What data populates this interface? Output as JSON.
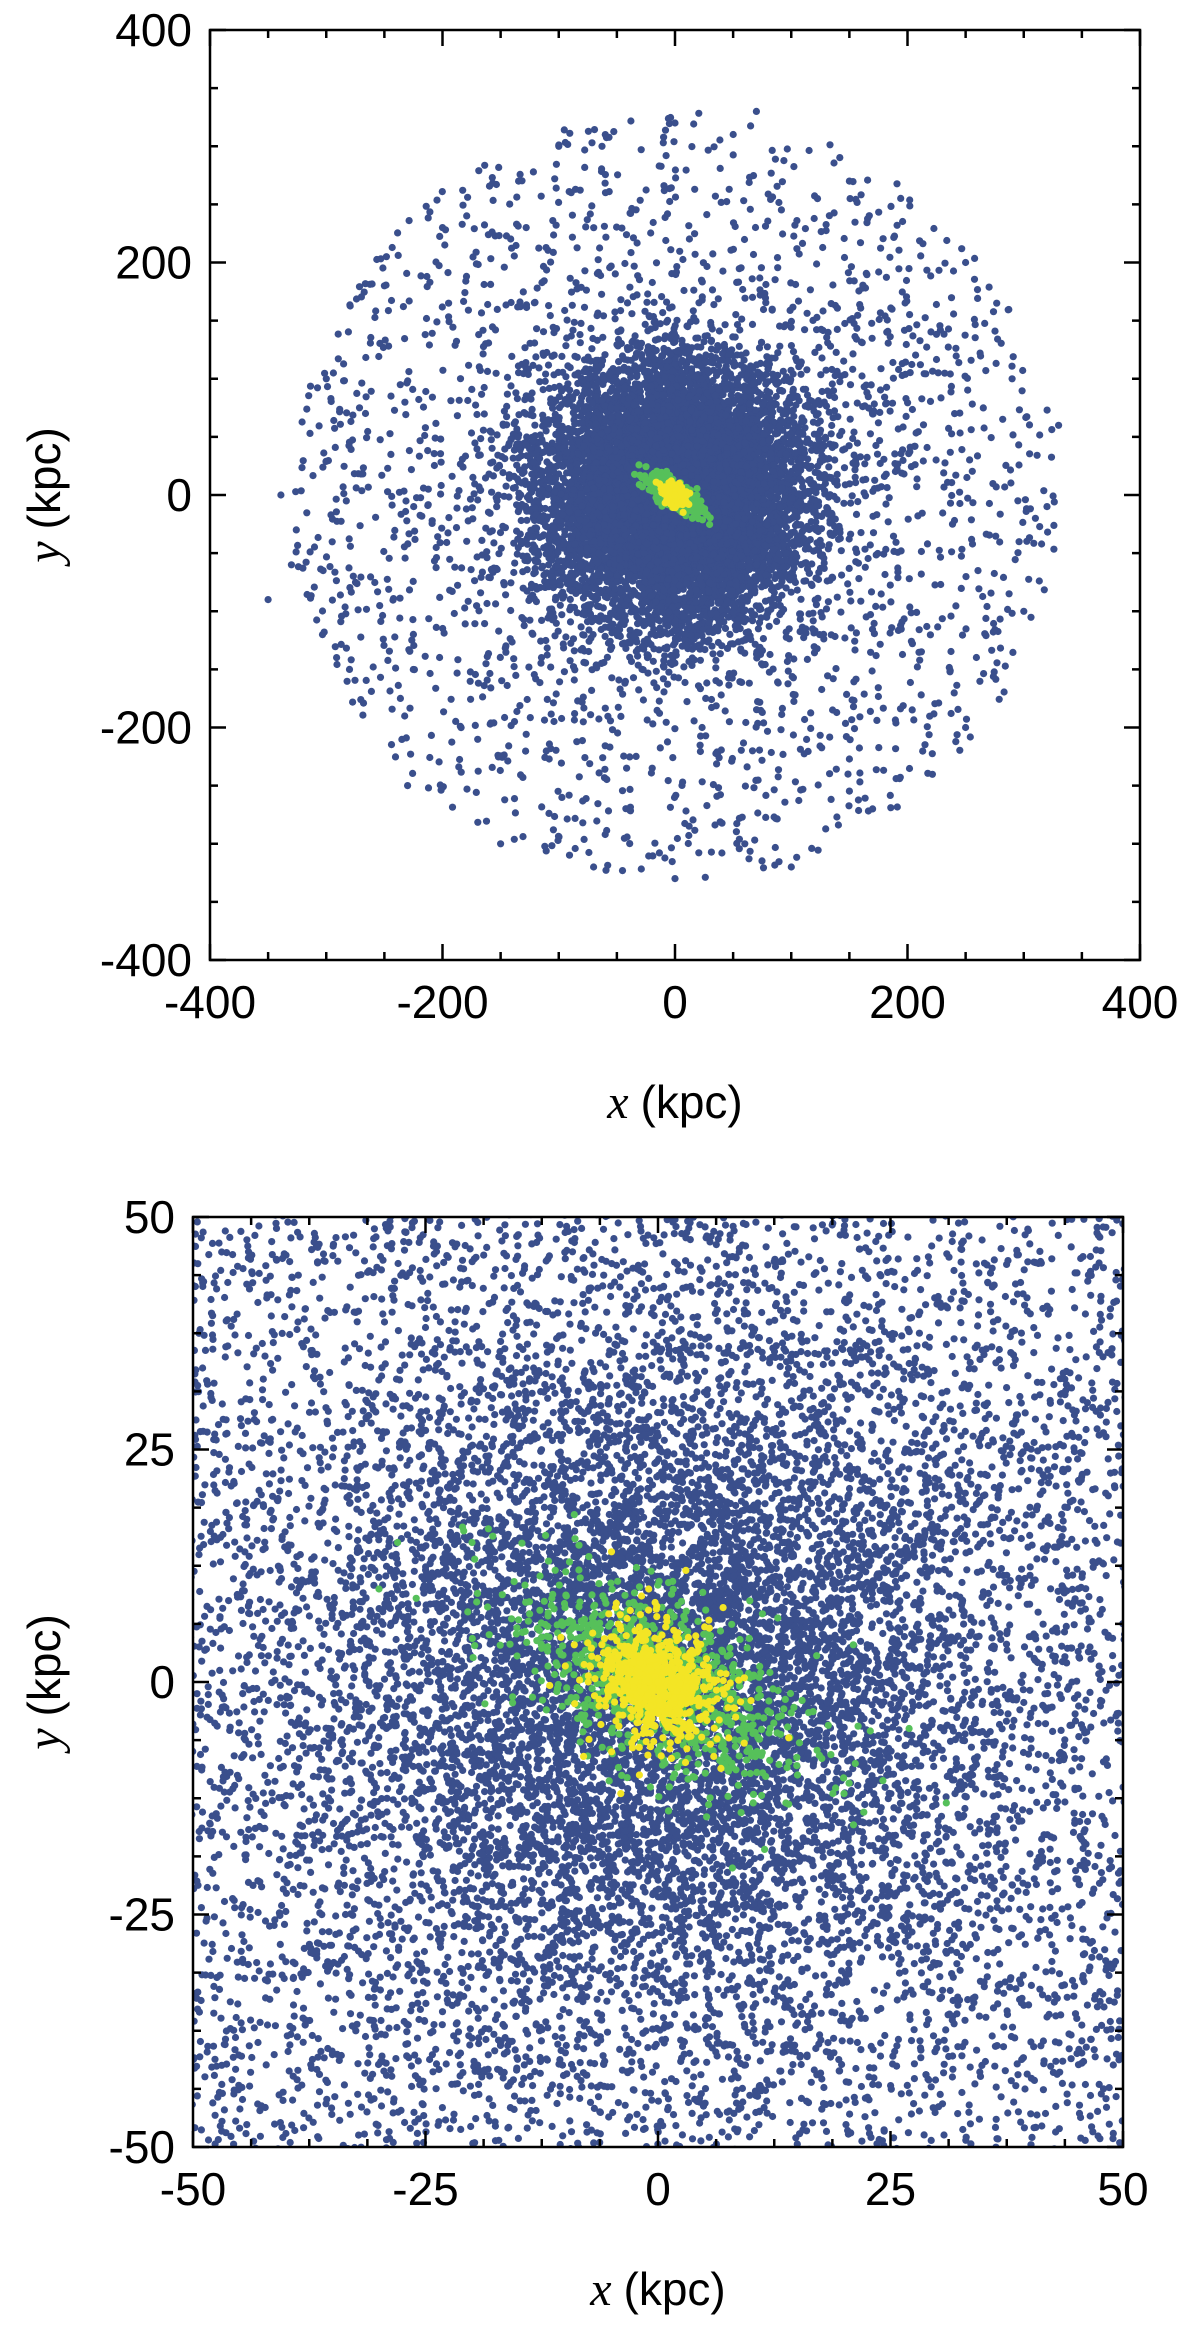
{
  "chart_data": [
    {
      "type": "scatter",
      "panel": "top",
      "title": "",
      "xlabel": {
        "var": "x",
        "unit": "(kpc)"
      },
      "ylabel": {
        "var": "y",
        "unit": "(kpc)"
      },
      "xlim": [
        -400,
        400
      ],
      "ylim": [
        -400,
        400
      ],
      "xticks": [
        -400,
        -200,
        0,
        200,
        400
      ],
      "yticks": [
        -400,
        -200,
        0,
        200,
        400
      ],
      "xtick_labels": [
        "-400",
        "-200",
        "0",
        "200",
        "400"
      ],
      "ytick_labels": [
        "-400",
        "-200",
        "0",
        "200",
        "400"
      ],
      "grid": false,
      "legend": "none",
      "series": [
        {
          "color": "#3a4f8c",
          "distribution": "roughly circular halo, dense core radius ~150 kpc, sparse outskirts to ~330 kpc",
          "extent_kpc": 330,
          "points": [
            [
              -339,
              0
            ],
            [
              -300,
              100
            ],
            [
              -250,
              180
            ],
            [
              -200,
              230
            ],
            [
              -100,
              300
            ],
            [
              0,
              320
            ],
            [
              70,
              330
            ],
            [
              150,
              270
            ],
            [
              250,
              200
            ],
            [
              290,
              100
            ],
            [
              330,
              60
            ],
            [
              310,
              -20
            ],
            [
              300,
              -100
            ],
            [
              250,
              -200
            ],
            [
              170,
              -270
            ],
            [
              100,
              -320
            ],
            [
              0,
              -330
            ],
            [
              -70,
              -320
            ],
            [
              -150,
              -300
            ],
            [
              -230,
              -250
            ],
            [
              -280,
              -150
            ],
            [
              -330,
              -60
            ],
            [
              -350,
              -90
            ],
            [
              320,
              -10
            ],
            [
              -60,
              310
            ],
            [
              60,
              -300
            ]
          ]
        },
        {
          "color": "#56c05a",
          "distribution": "elongated along the diagonal from upper-left to lower-right, ~30 kpc across",
          "points": [
            [
              -20,
              10
            ],
            [
              -15,
              5
            ],
            [
              -10,
              0
            ],
            [
              0,
              -5
            ],
            [
              10,
              -10
            ],
            [
              20,
              -15
            ],
            [
              -25,
              12
            ],
            [
              15,
              -20
            ]
          ]
        },
        {
          "color": "#f3e525",
          "distribution": "compact core near the origin, ~10 kpc across",
          "points": [
            [
              0,
              0
            ],
            [
              -5,
              3
            ],
            [
              5,
              -3
            ],
            [
              -8,
              6
            ],
            [
              6,
              -6
            ]
          ]
        }
      ]
    },
    {
      "type": "scatter",
      "panel": "bottom",
      "title": "",
      "xlabel": {
        "var": "x",
        "unit": "(kpc)"
      },
      "ylabel": {
        "var": "y",
        "unit": "(kpc)"
      },
      "xlim": [
        -50,
        50
      ],
      "ylim": [
        -50,
        50
      ],
      "xticks": [
        -50,
        -25,
        0,
        25,
        50
      ],
      "yticks": [
        -50,
        -25,
        0,
        25,
        50
      ],
      "xtick_labels": [
        "-50",
        "-25",
        "0",
        "25",
        "50"
      ],
      "ytick_labels": [
        "-50",
        "-25",
        "0",
        "25",
        "50"
      ],
      "grid": false,
      "legend": "none",
      "series": [
        {
          "color": "#3a4f8c",
          "distribution": "fills the whole frame; densest within ~30 kpc of centre",
          "extent_kpc": 70
        },
        {
          "color": "#56c05a",
          "distribution": "elongated bar from upper-left (about -20, 15) to lower-right (about 20, -15)",
          "points": [
            [
              -28,
              15
            ],
            [
              -26,
              9
            ],
            [
              -30,
              10
            ],
            [
              -20,
              15
            ],
            [
              -10,
              8
            ],
            [
              -5,
              3
            ],
            [
              0,
              0
            ],
            [
              5,
              -3
            ],
            [
              10,
              -5
            ],
            [
              15,
              -10
            ],
            [
              20,
              -12
            ],
            [
              21,
              4
            ],
            [
              27,
              -5
            ],
            [
              31,
              -13
            ],
            [
              -12,
              -3
            ],
            [
              8,
              -20
            ],
            [
              -9,
              18
            ]
          ]
        },
        {
          "color": "#f3e525",
          "distribution": "concentrated within ~10 kpc of the origin, slightly tilted",
          "points": [
            [
              0,
              0
            ],
            [
              -2,
              1
            ],
            [
              2,
              -1
            ],
            [
              -3,
              3
            ],
            [
              4,
              -2
            ],
            [
              -5,
              14
            ],
            [
              3,
              12
            ],
            [
              -1,
              10
            ],
            [
              -8,
              -8
            ],
            [
              -4,
              -12
            ],
            [
              -2,
              -10
            ],
            [
              6,
              -8
            ],
            [
              7,
              8
            ],
            [
              -9,
              4
            ],
            [
              10,
              -2
            ]
          ]
        }
      ]
    }
  ]
}
